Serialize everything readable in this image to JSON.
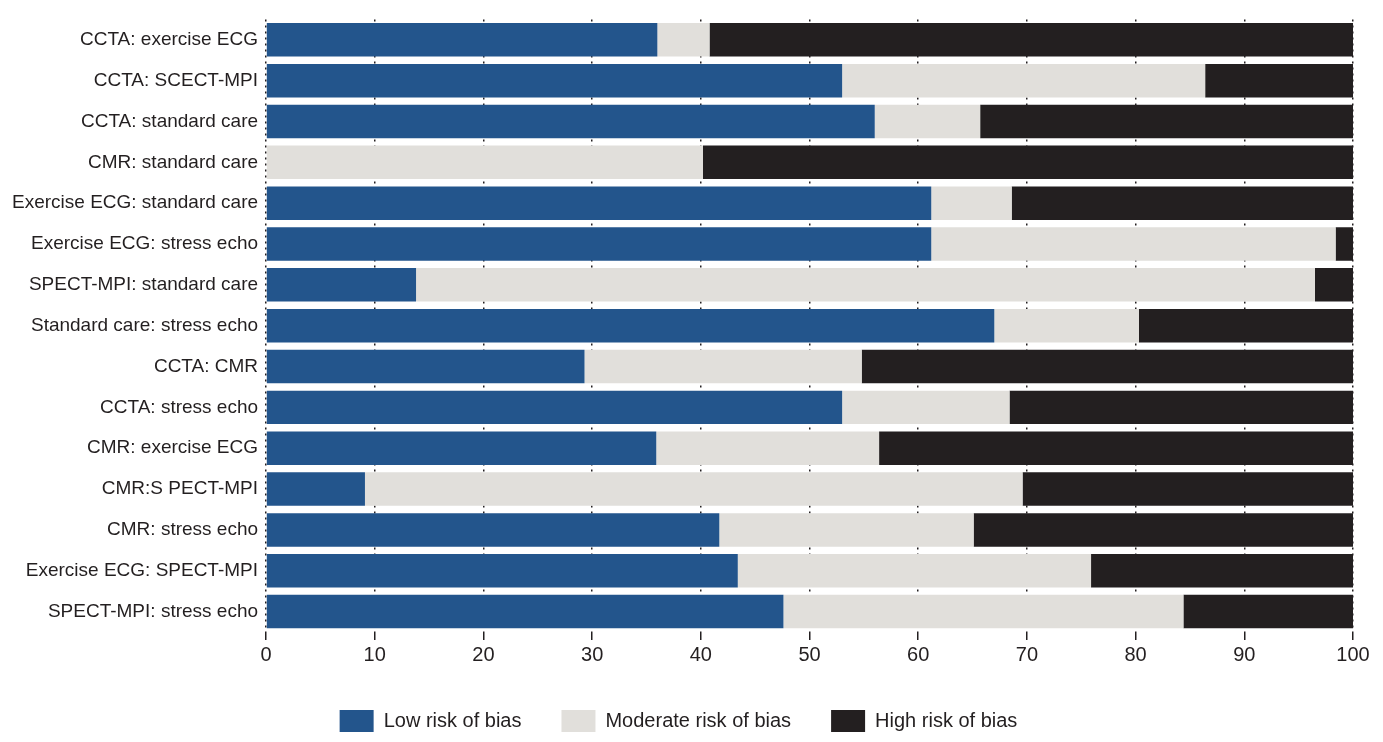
{
  "chart_data": {
    "type": "bar",
    "orientation": "horizontal",
    "stacked": true,
    "categories": [
      "CCTA: exercise ECG",
      "CCTA: SCECT-MPI",
      "CCTA: standard care",
      "CMR: standard care",
      "Exercise ECG: standard care",
      "Exercise ECG: stress echo",
      "SPECT-MPI: standard care",
      "Standard care: stress echo",
      "CCTA: CMR",
      "CCTA: stress echo",
      "CMR: exercise ECG",
      "CMR:S PECT-MPI",
      "CMR: stress echo",
      "Exercise ECG: SPECT-MPI",
      "SPECT-MPI: stress echo"
    ],
    "series": [
      {
        "name": "Low risk of bias",
        "color": "#23558c",
        "values": [
          36.0,
          53.0,
          56.0,
          null,
          61.2,
          61.2,
          13.8,
          67.0,
          29.3,
          53.0,
          35.9,
          9.1,
          41.7,
          43.4,
          47.6
        ]
      },
      {
        "name": "Moderate risk of bias",
        "color": "#e1dfdb",
        "values": [
          4.8,
          33.4,
          9.7,
          40.2,
          7.4,
          37.2,
          82.7,
          13.3,
          25.5,
          15.4,
          20.5,
          60.5,
          23.4,
          32.5,
          36.8
        ]
      },
      {
        "name": "High risk of bias",
        "color": "#231f20",
        "values": [
          59.2,
          13.6,
          34.3,
          59.8,
          31.4,
          1.6,
          3.5,
          19.7,
          45.2,
          31.6,
          43.6,
          30.4,
          34.9,
          24.1,
          15.6
        ]
      }
    ],
    "xlim": [
      0,
      100
    ],
    "xticks": [
      0,
      10,
      20,
      30,
      40,
      50,
      60,
      70,
      80,
      90,
      100
    ],
    "grid": "x",
    "legend": "bottom"
  }
}
